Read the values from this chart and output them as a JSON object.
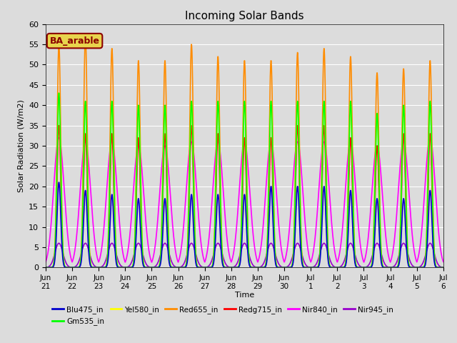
{
  "title": "Incoming Solar Bands",
  "xlabel": "Time",
  "ylabel": "Solar Radiation (W/m2)",
  "annotation": "BA_arable",
  "ylim": [
    0,
    60
  ],
  "plot_bg_color": "#dcdcdc",
  "fig_bg_color": "#dcdcdc",
  "series": [
    {
      "name": "Blu475_in",
      "color": "#0000cc",
      "sigma": 0.07,
      "wide": false
    },
    {
      "name": "Gm535_in",
      "color": "#00ff00",
      "sigma": 0.07,
      "wide": false
    },
    {
      "name": "Yel580_in",
      "color": "#ffff00",
      "sigma": 0.07,
      "wide": false
    },
    {
      "name": "Red655_in",
      "color": "#ff8c00",
      "sigma": 0.07,
      "wide": false
    },
    {
      "name": "Redg715_in",
      "color": "#ff0000",
      "sigma": 0.07,
      "wide": false
    },
    {
      "name": "Nir840_in",
      "color": "#ff00ff",
      "sigma": 0.2,
      "wide": true
    },
    {
      "name": "Nir945_in",
      "color": "#9900cc",
      "sigma": 0.15,
      "wide": false
    }
  ],
  "x_tick_labels": [
    "Jun\n21",
    "Jun\n22",
    "Jun\n23",
    "Jun\n24",
    "Jun\n25",
    "Jun\n26",
    "Jun\n27",
    "Jun\n28",
    "Jun\n29",
    "Jun\n30",
    "Jul\n1",
    "Jul\n2",
    "Jul\n3",
    "Jul\n4",
    "Jul\n5",
    "Jul\n6"
  ],
  "x_tick_labels_display": [
    "21",
    "22",
    "23",
    "24",
    "25",
    "26",
    "27",
    "28",
    "29",
    "30",
    "1",
    "2",
    "3",
    "4",
    "5",
    "6"
  ],
  "num_days": 15,
  "points_per_day": 200
}
